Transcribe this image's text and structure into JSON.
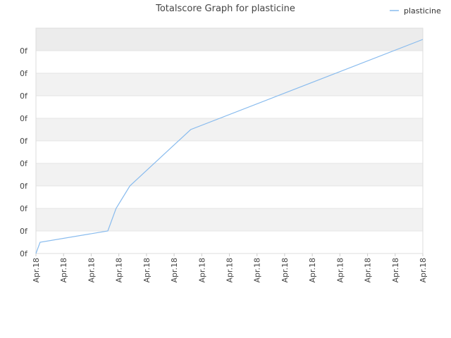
{
  "chart_data": {
    "type": "line",
    "title": "Totalscore Graph for plasticine",
    "xlabel": "",
    "ylabel": "",
    "legend": "top-right",
    "grid": true,
    "x_tick_labels": [
      "Apr.18",
      "Apr.18",
      "Apr.18",
      "Apr.18",
      "Apr.18",
      "Apr.18",
      "Apr.18",
      "Apr.18",
      "Apr.18",
      "Apr.18",
      "Apr.18",
      "Apr.18",
      "Apr.18",
      "Apr.18",
      "Apr.18"
    ],
    "y_tick_labels": [
      "0f",
      "0f",
      "0f",
      "0f",
      "0f",
      "0f",
      "0f",
      "0f",
      "0f",
      "0f"
    ],
    "series": [
      {
        "name": "plasticine",
        "color": "#88bbee",
        "x": [
          0,
          0.15,
          2.6,
          2.9,
          3.4,
          5.6,
          14.0
        ],
        "y": [
          0,
          0.5,
          1.0,
          2.0,
          3.0,
          5.5,
          9.5
        ]
      }
    ],
    "xlim": [
      0,
      14
    ],
    "ylim": [
      0,
      10
    ],
    "band_colors": [
      "#ececec",
      "#ffffff"
    ]
  }
}
